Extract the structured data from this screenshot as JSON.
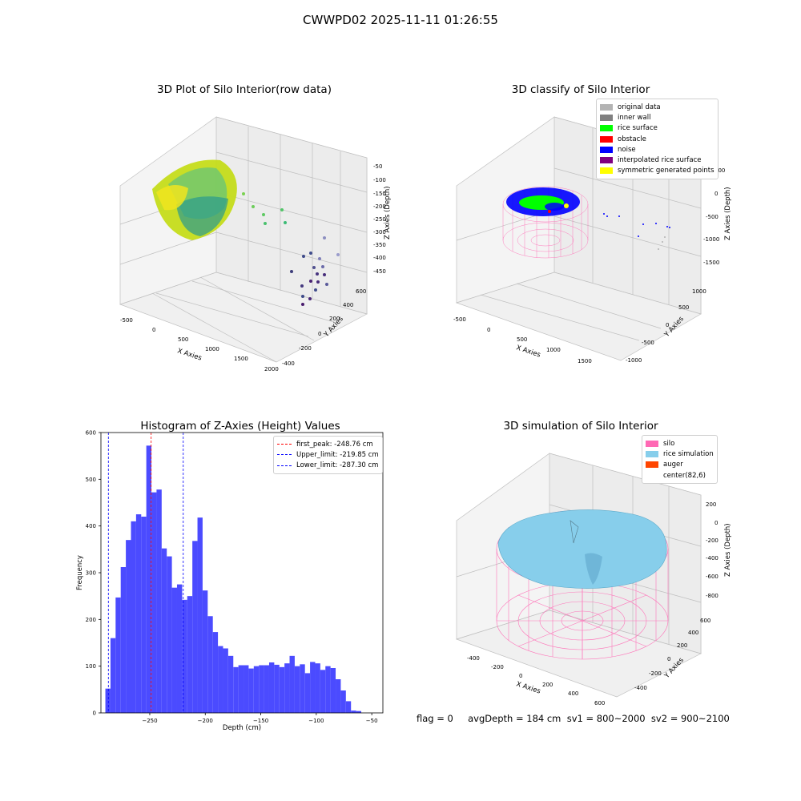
{
  "figure": {
    "suptitle": "CWWPD02 2025-11-11 01:26:55"
  },
  "panel1": {
    "title": "3D Plot of Silo Interior(row data)",
    "xlabel": "X Axies",
    "ylabel": "Y Axies",
    "zlabel": "Z Axies (Depth)",
    "xticks": [
      "-500",
      "0",
      "500",
      "1000",
      "1500",
      "2000"
    ],
    "yticks": [
      "-400",
      "-200",
      "0",
      "200",
      "400",
      "600"
    ],
    "zticks": [
      "-50",
      "-100",
      "-150",
      "-200",
      "-250",
      "-300",
      "-350",
      "-400",
      "-450"
    ]
  },
  "panel2": {
    "title": "3D classify of Silo Interior",
    "xlabel": "X Axies",
    "ylabel": "Y Axies",
    "zlabel": "Z Axies (Depth)",
    "xticks": [
      "-500",
      "0",
      "500",
      "1000",
      "1500"
    ],
    "yticks": [
      "-1000",
      "-500",
      "0",
      "500",
      "1000"
    ],
    "zticks": [
      "500",
      "0",
      "-500",
      "-1000",
      "-1500"
    ],
    "legend": [
      {
        "label": "original data",
        "color": "#b3b3b3"
      },
      {
        "label": "inner wall",
        "color": "#808080"
      },
      {
        "label": "rice surface",
        "color": "#00ff00"
      },
      {
        "label": "obstacle",
        "color": "#ff0000"
      },
      {
        "label": "noise",
        "color": "#0000ff"
      },
      {
        "label": "interpolated rice surface",
        "color": "#800080"
      },
      {
        "label": "symmetric generated points",
        "color": "#ffff00"
      }
    ]
  },
  "panel3": {
    "title": "Histogram of Z-Axies (Height) Values",
    "legend": [
      {
        "label": "first_peak: -248.76 cm",
        "color": "#ff0000"
      },
      {
        "label": "Upper_limit: -219.85 cm",
        "color": "#0000ff"
      },
      {
        "label": "Lower_limit: -287.30 cm",
        "color": "#0000ff"
      }
    ]
  },
  "panel4": {
    "title": "3D simulation of Silo Interior",
    "xlabel": "X Axies",
    "ylabel": "Y Axies",
    "zlabel": "Z Axies (Depth)",
    "xticks": [
      "-400",
      "-200",
      "0",
      "200",
      "400",
      "600"
    ],
    "yticks": [
      "-400",
      "-200",
      "0",
      "200",
      "400",
      "600"
    ],
    "zticks": [
      "200",
      "0",
      "-200",
      "-400",
      "-600",
      "-800"
    ],
    "legend": [
      {
        "label": "silo",
        "color": "#ff69b4"
      },
      {
        "label": "rice simulation",
        "color": "#87ceeb"
      },
      {
        "label": "auger",
        "color": "#ff4500"
      },
      {
        "label": "center(82,6)",
        "color": ""
      }
    ]
  },
  "status": {
    "text": "flag = 0     avgDepth = 184 cm  sv1 = 800~2000  sv2 = 900~2100"
  },
  "chart_data": [
    {
      "type": "bar",
      "title": "Histogram of Z-Axies (Height) Values",
      "xlabel": "Depth (cm)",
      "ylabel": "Frequency",
      "xlim": [
        -294,
        -40
      ],
      "ylim": [
        0,
        600
      ],
      "xticks": [
        -250,
        -200,
        -150,
        -100,
        -50
      ],
      "yticks": [
        0,
        100,
        200,
        300,
        400,
        500,
        600
      ],
      "bar_color": "#4b4bff",
      "bin_width": 4.61,
      "bin_start": -290.0,
      "values": [
        52,
        160,
        247,
        312,
        370,
        410,
        425,
        420,
        572,
        472,
        478,
        352,
        335,
        268,
        275,
        242,
        250,
        368,
        418,
        262,
        207,
        173,
        143,
        138,
        122,
        98,
        102,
        102,
        95,
        100,
        102,
        102,
        108,
        103,
        98,
        106,
        122,
        100,
        104,
        85,
        109,
        106,
        92,
        100,
        96,
        72,
        48,
        25,
        5,
        4
      ],
      "annotations": [
        {
          "x": -248.76,
          "color": "#ff0000",
          "label": "first_peak: -248.76 cm"
        },
        {
          "x": -219.85,
          "color": "#0000ff",
          "label": "Upper_limit: -219.85 cm"
        },
        {
          "x": -287.3,
          "color": "#0000ff",
          "label": "Lower_limit: -287.30 cm"
        }
      ]
    }
  ]
}
